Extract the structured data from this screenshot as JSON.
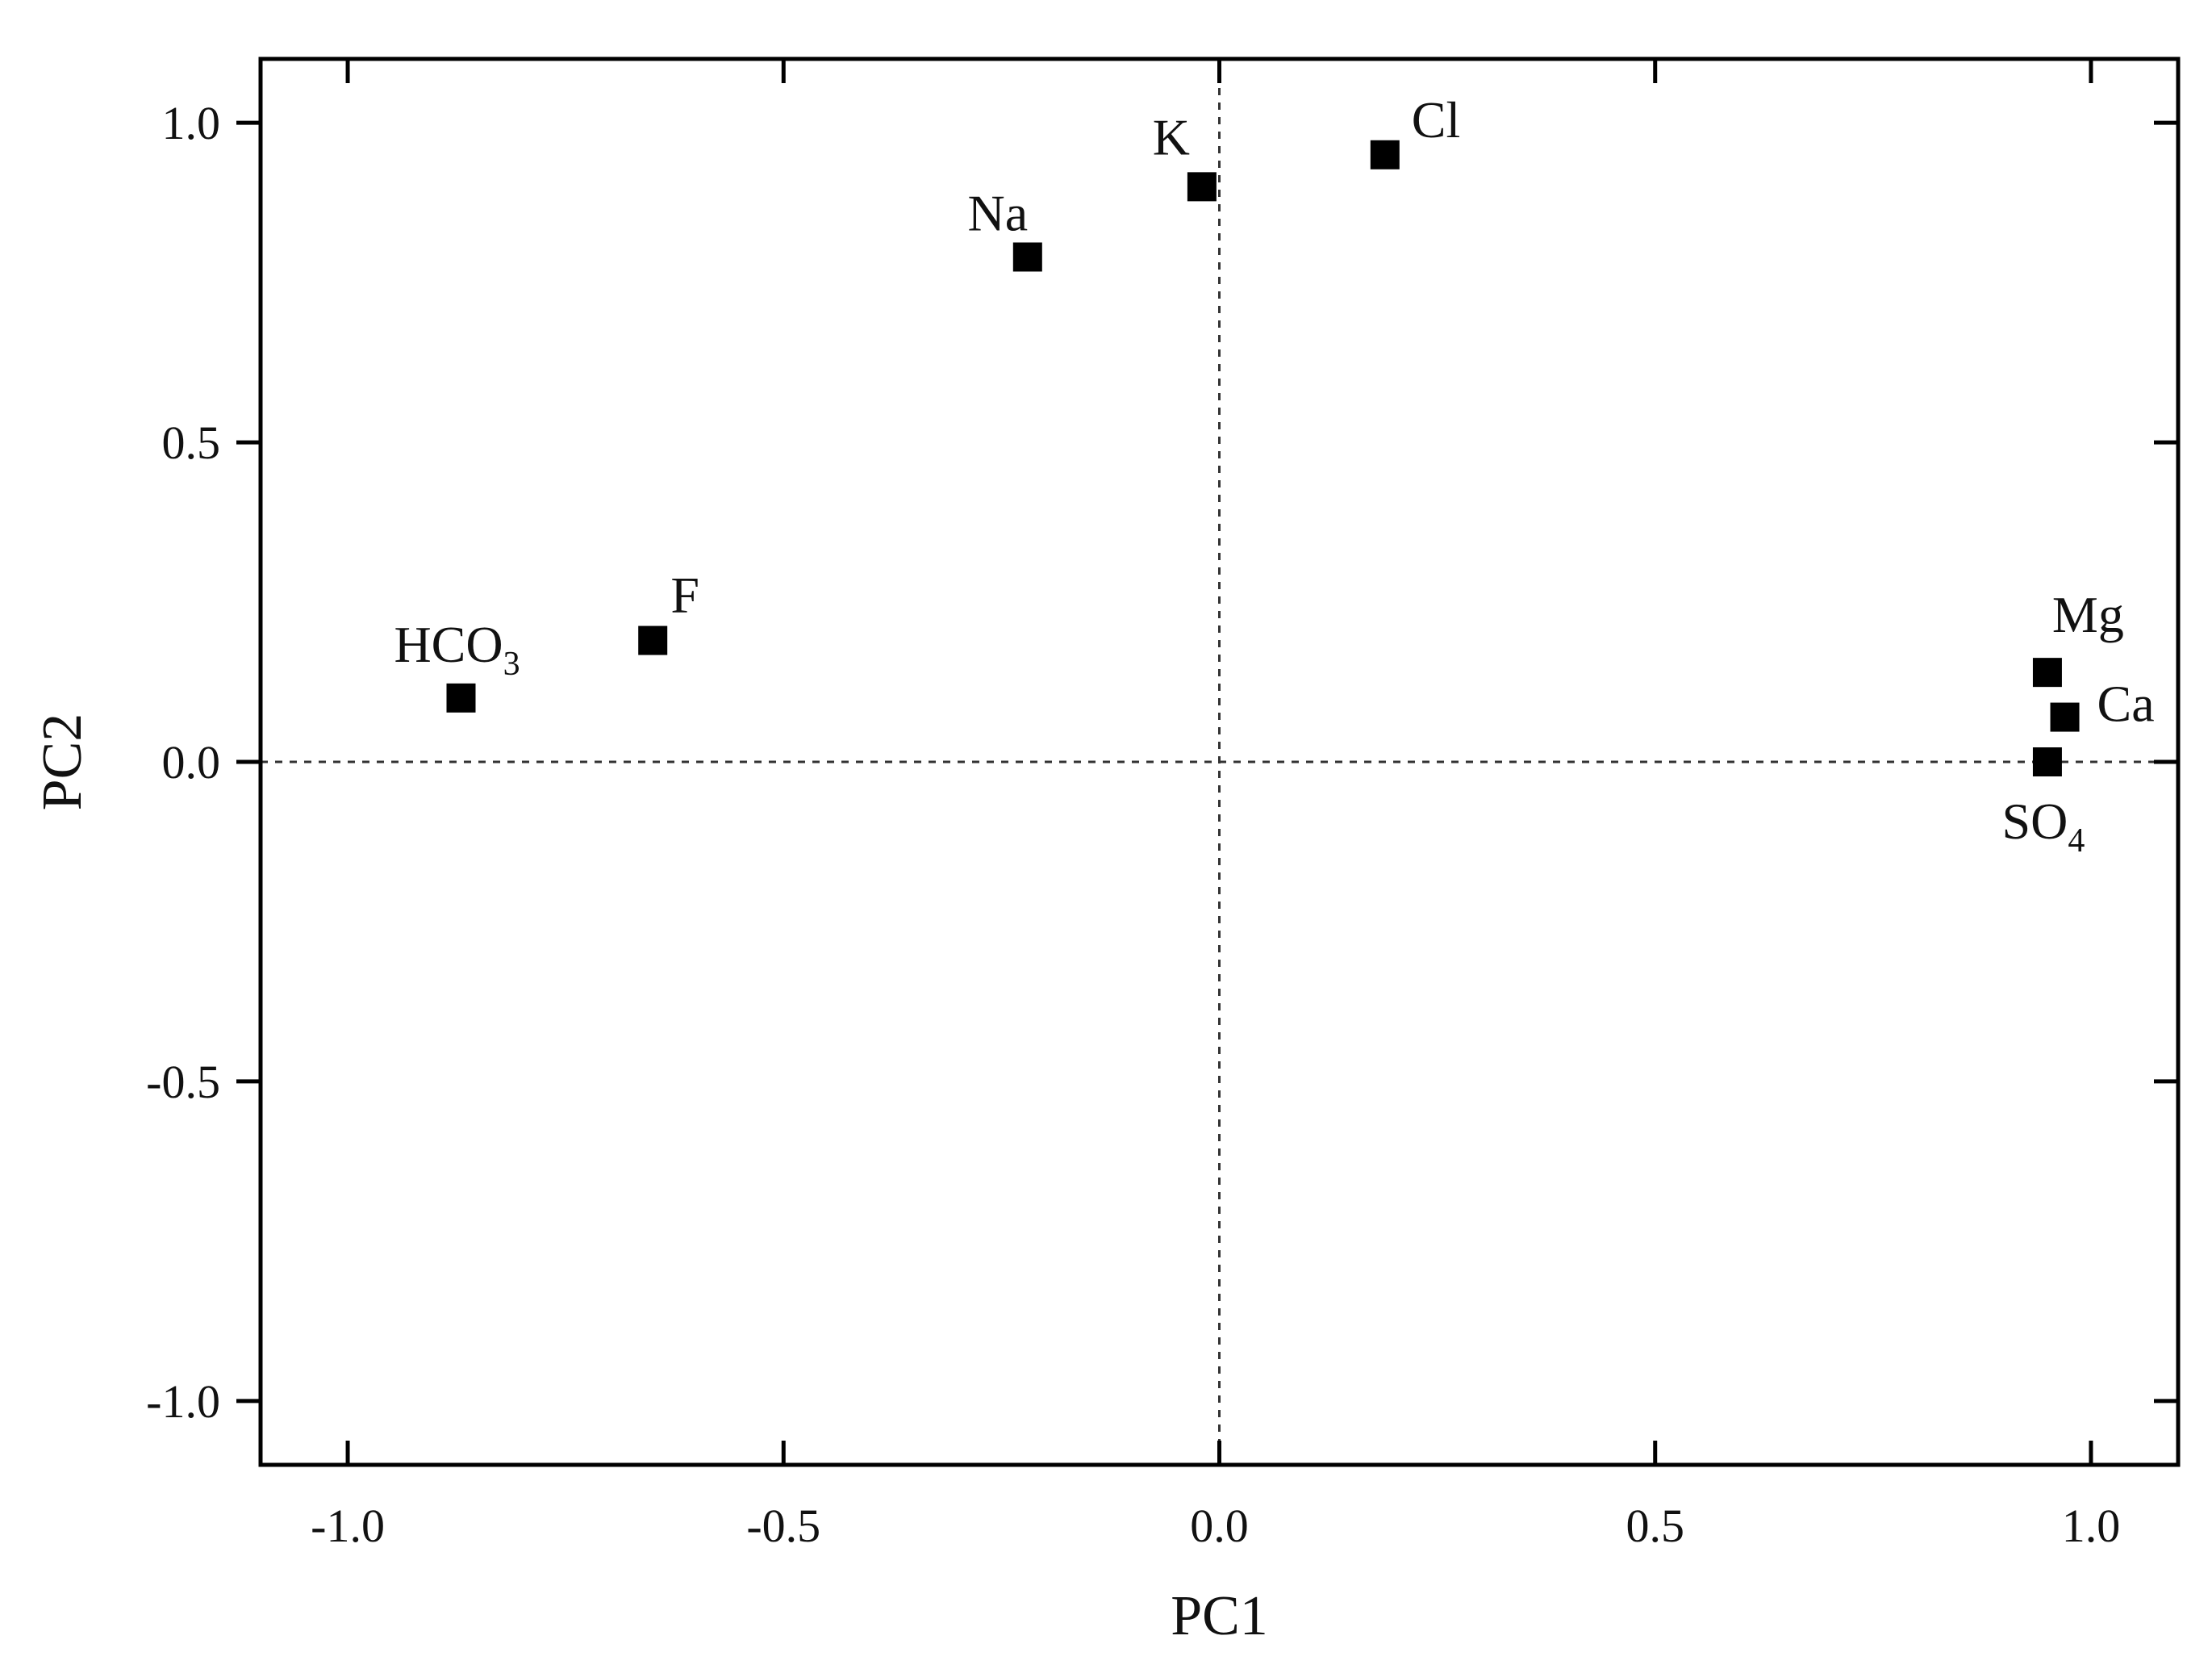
{
  "chart_data": {
    "type": "scatter",
    "title": "",
    "xlabel": "PC1",
    "ylabel": "PC2",
    "xlim": [
      -1.1,
      1.1
    ],
    "ylim": [
      -1.1,
      1.1
    ],
    "xticks": [
      -1.0,
      -0.5,
      0.0,
      0.5,
      1.0
    ],
    "yticks": [
      -1.0,
      -0.5,
      0.0,
      0.5,
      1.0
    ],
    "xtick_labels": [
      "-1.0",
      "-0.5",
      "0.0",
      "0.5",
      "1.0"
    ],
    "ytick_labels": [
      "-1.0",
      "-0.5",
      "0.0",
      "0.5",
      "1.0"
    ],
    "grid": false,
    "reference_lines": {
      "x": 0,
      "y": 0,
      "style": "dashed"
    },
    "marker": "square",
    "marker_color": "#000000",
    "points": [
      {
        "label": "HCO",
        "sub": "3",
        "x": -0.87,
        "y": 0.1
      },
      {
        "label": "F",
        "sub": "",
        "x": -0.65,
        "y": 0.19
      },
      {
        "label": "Na",
        "sub": "",
        "x": -0.22,
        "y": 0.79
      },
      {
        "label": "K",
        "sub": "",
        "x": -0.02,
        "y": 0.9
      },
      {
        "label": "Cl",
        "sub": "",
        "x": 0.19,
        "y": 0.95
      },
      {
        "label": "Mg",
        "sub": "",
        "x": 0.95,
        "y": 0.14
      },
      {
        "label": "Ca",
        "sub": "",
        "x": 0.97,
        "y": 0.07
      },
      {
        "label": "SO",
        "sub": "4",
        "x": 0.95,
        "y": 0.0
      }
    ]
  }
}
